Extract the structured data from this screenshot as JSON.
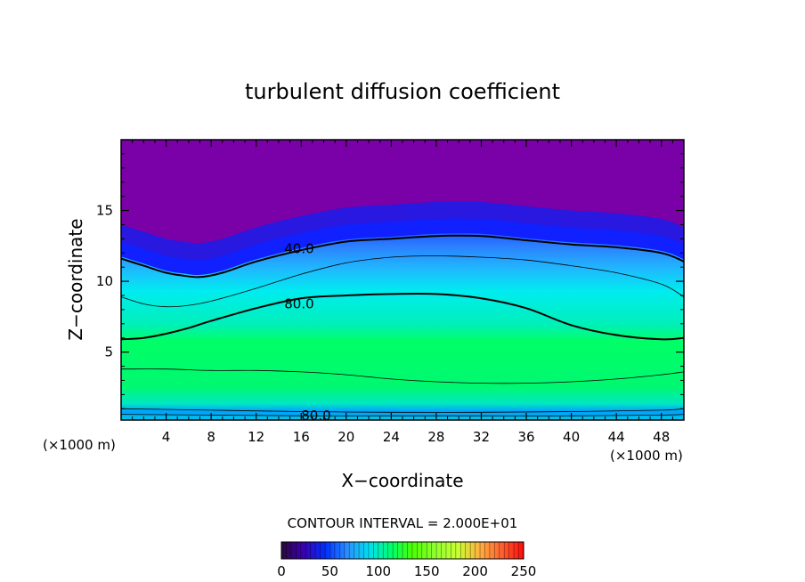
{
  "chart_data": {
    "type": "heatmap",
    "title": "turbulent diffusion coefficient",
    "xlabel": "X−coordinate",
    "ylabel": "Z−coordinate",
    "x_unit_left": "(×1000 m)",
    "x_unit_right": "(×1000 m)",
    "xlim": [
      0,
      50
    ],
    "ylim": [
      0.2,
      20
    ],
    "x_ticks": [
      4,
      8,
      12,
      16,
      20,
      24,
      28,
      32,
      36,
      40,
      44,
      48
    ],
    "y_ticks": [
      5,
      10,
      15
    ],
    "grid": false,
    "colorscale": {
      "min": 0,
      "max": 250,
      "ticks": [
        0,
        50,
        100,
        150,
        200,
        250
      ],
      "stops": [
        "#2a0a3a",
        "#3a00b0",
        "#0030ff",
        "#2a90ff",
        "#00e0f0",
        "#00ff6a",
        "#50ff00",
        "#90ff30",
        "#c8ff30",
        "#ffb040",
        "#ff6030",
        "#ff0a0a"
      ]
    },
    "contour_interval_text": "CONTOUR INTERVAL = 2.000E+01",
    "contours": [
      {
        "value": 40,
        "label": "40.0",
        "label_at": [
          14.5,
          12.3
        ],
        "style": "bold",
        "x": [
          0,
          2,
          4,
          5.5,
          7,
          9,
          12,
          16,
          20,
          24,
          28,
          32,
          36,
          40,
          44,
          48,
          50
        ],
        "y": [
          11.6,
          11.1,
          10.6,
          10.4,
          10.3,
          10.6,
          11.4,
          12.2,
          12.8,
          13.0,
          13.2,
          13.2,
          12.9,
          12.6,
          12.4,
          12.0,
          11.4
        ]
      },
      {
        "value": 60,
        "label": "",
        "style": "thin",
        "x": [
          0,
          2,
          4,
          6,
          8,
          12,
          16,
          20,
          24,
          28,
          32,
          36,
          40,
          44,
          48,
          50
        ],
        "y": [
          8.9,
          8.4,
          8.2,
          8.3,
          8.6,
          9.5,
          10.5,
          11.3,
          11.7,
          11.8,
          11.7,
          11.5,
          11.1,
          10.6,
          9.8,
          8.9
        ]
      },
      {
        "value": 80,
        "label": "80.0",
        "label_at": [
          14.5,
          8.4
        ],
        "style": "bold",
        "x": [
          0,
          2,
          4,
          6,
          8,
          12,
          16,
          20,
          24,
          28,
          32,
          36,
          40,
          44,
          48,
          50
        ],
        "y": [
          5.9,
          6.0,
          6.3,
          6.7,
          7.2,
          8.1,
          8.8,
          9.0,
          9.1,
          9.1,
          8.8,
          8.1,
          6.9,
          6.2,
          5.9,
          6.0
        ]
      },
      {
        "value": 100,
        "label": "",
        "style": "thin",
        "x": [
          0,
          4,
          8,
          12,
          16,
          20,
          24,
          28,
          32,
          36,
          40,
          44,
          48,
          50
        ],
        "y": [
          3.8,
          3.8,
          3.7,
          3.7,
          3.6,
          3.4,
          3.1,
          2.9,
          2.8,
          2.8,
          2.9,
          3.1,
          3.4,
          3.6
        ]
      },
      {
        "value": 80,
        "label": "80.0",
        "label_at": [
          16.0,
          0.5
        ],
        "style": "thin",
        "x": [
          0,
          8,
          16,
          24,
          32,
          40,
          48,
          50
        ],
        "y": [
          1.0,
          0.9,
          0.8,
          0.75,
          0.75,
          0.8,
          0.9,
          1.0
        ]
      },
      {
        "value": 60,
        "label": "",
        "style": "thin",
        "x": [
          0,
          8,
          16,
          24,
          32,
          40,
          48,
          50
        ],
        "y": [
          0.6,
          0.55,
          0.5,
          0.5,
          0.5,
          0.5,
          0.55,
          0.6
        ]
      }
    ]
  }
}
